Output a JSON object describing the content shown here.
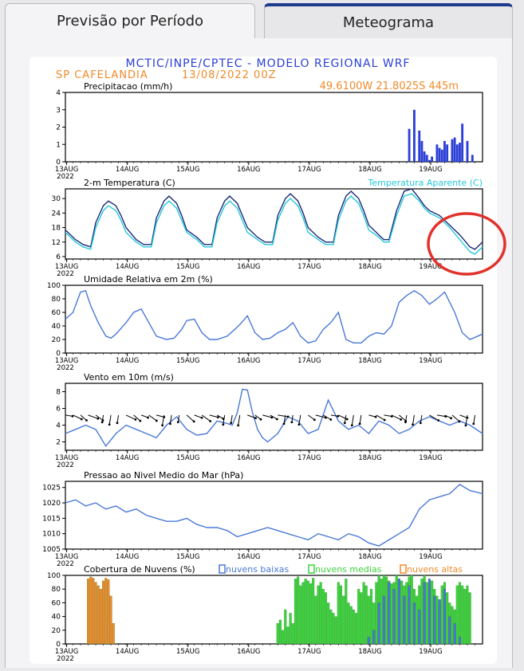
{
  "tabs": [
    {
      "label": "Previsão por Período",
      "active": false
    },
    {
      "label": "Meteograma",
      "active": true
    }
  ],
  "header": {
    "title": "MCTIC/INPE/CPTEC - MODELO REGIONAL WRF",
    "station": "SP CAFELANDIA",
    "run": "13/08/2022 00Z",
    "coords": "49.6100W 21.8025S 445m"
  },
  "colors": {
    "blue": "#2b3fd6",
    "navy": "#1a2a7a",
    "cyan": "#25c8d8",
    "orange": "#f08a2a",
    "green": "#3cd23c",
    "lightblue": "#4a78d8",
    "annotation": "#e2312a"
  },
  "x_axis": {
    "labels": [
      "13AUG",
      "14AUG",
      "15AUG",
      "16AUG",
      "17AUG",
      "18AUG",
      "19AUG"
    ],
    "year": "2022"
  },
  "chart_data": [
    {
      "type": "bar",
      "title": "Precipitacao (mm/h)",
      "ylim": [
        0,
        4
      ],
      "yticks": [
        0,
        1,
        2,
        3,
        4
      ],
      "xlabel": "",
      "ylabel": "",
      "x": [
        136,
        138,
        140,
        141,
        142,
        143,
        144,
        145,
        147,
        148,
        149,
        150,
        151,
        153,
        154,
        155,
        156,
        157,
        159,
        161
      ],
      "values": [
        1.9,
        3.0,
        1.8,
        1.2,
        0.6,
        0.4,
        0.1,
        0.3,
        1.0,
        0.8,
        0.7,
        1.2,
        1.0,
        1.3,
        1.4,
        1.0,
        1.1,
        2.2,
        1.2,
        0.4
      ]
    },
    {
      "type": "line",
      "title": "2-m Temperatura (C)",
      "ylim": [
        5,
        34
      ],
      "yticks": [
        6,
        12,
        18,
        24,
        30
      ],
      "xlabel": "",
      "ylabel": "",
      "x": [
        0,
        4,
        7,
        10,
        12,
        15,
        17,
        20,
        22,
        24,
        28,
        31,
        34,
        36,
        39,
        41,
        44,
        46,
        48,
        52,
        55,
        58,
        60,
        63,
        65,
        68,
        70,
        72,
        76,
        79,
        82,
        84,
        87,
        89,
        92,
        94,
        96,
        100,
        103,
        106,
        108,
        111,
        113,
        116,
        118,
        120,
        124,
        126,
        128,
        131,
        134,
        137,
        140,
        142,
        144,
        148,
        150,
        152,
        156,
        160,
        162,
        165
      ],
      "series": [
        {
          "name": "",
          "values": [
            17,
            13,
            11,
            10,
            20,
            27,
            29,
            27,
            23,
            18,
            13,
            11,
            11,
            22,
            29,
            31,
            28,
            23,
            17,
            14,
            11,
            11,
            22,
            29,
            31,
            28,
            23,
            18,
            14,
            12,
            12,
            23,
            30,
            32,
            29,
            24,
            18,
            14,
            12,
            12,
            23,
            31,
            33,
            30,
            25,
            19,
            15,
            13,
            13,
            25,
            33,
            34,
            30,
            27,
            25,
            23,
            21,
            19,
            15,
            10,
            9,
            12
          ]
        },
        {
          "name": "Temperatura Aparente (C)",
          "values": [
            16,
            12,
            10,
            9,
            18,
            25,
            27,
            25,
            21,
            16,
            12,
            10,
            10,
            20,
            27,
            29,
            26,
            21,
            16,
            13,
            10,
            10,
            20,
            27,
            29,
            26,
            21,
            16,
            13,
            11,
            11,
            21,
            28,
            30,
            27,
            22,
            16,
            13,
            11,
            11,
            21,
            29,
            31,
            28,
            23,
            17,
            14,
            12,
            12,
            23,
            31,
            32,
            29,
            26,
            24,
            22,
            20,
            18,
            13,
            8,
            7,
            10
          ]
        }
      ]
    },
    {
      "type": "line",
      "title": "Umidade Relativa em 2m (%)",
      "ylim": [
        0,
        100
      ],
      "yticks": [
        0,
        20,
        40,
        60,
        80,
        100
      ],
      "xlabel": "",
      "ylabel": "",
      "x": [
        0,
        3,
        6,
        8,
        10,
        13,
        16,
        18,
        20,
        24,
        27,
        30,
        33,
        36,
        40,
        43,
        46,
        48,
        51,
        54,
        57,
        60,
        64,
        67,
        69,
        72,
        75,
        78,
        81,
        84,
        87,
        90,
        93,
        96,
        99,
        102,
        105,
        108,
        111,
        114,
        117,
        120,
        123,
        126,
        129,
        132,
        135,
        138,
        141,
        144,
        147,
        150,
        154,
        157,
        160,
        165
      ],
      "series": [
        {
          "name": "",
          "values": [
            50,
            60,
            90,
            92,
            70,
            45,
            25,
            22,
            28,
            45,
            60,
            65,
            45,
            25,
            20,
            22,
            35,
            48,
            50,
            30,
            20,
            20,
            25,
            35,
            42,
            55,
            30,
            20,
            22,
            30,
            35,
            45,
            25,
            15,
            18,
            35,
            45,
            60,
            20,
            15,
            15,
            25,
            30,
            28,
            40,
            75,
            85,
            92,
            85,
            72,
            80,
            90,
            60,
            30,
            20,
            28
          ]
        }
      ]
    },
    {
      "type": "line",
      "title": "Vento em 10m (m/s)",
      "ylim": [
        1,
        9
      ],
      "yticks": [
        2,
        4,
        6,
        8
      ],
      "xlabel": "",
      "ylabel": "",
      "x": [
        0,
        4,
        8,
        12,
        16,
        20,
        24,
        28,
        32,
        36,
        40,
        44,
        48,
        52,
        56,
        60,
        64,
        66,
        68,
        70,
        72,
        74,
        76,
        78,
        80,
        84,
        88,
        92,
        96,
        100,
        104,
        108,
        112,
        116,
        120,
        124,
        128,
        132,
        136,
        140,
        144,
        148,
        152,
        156,
        160,
        165
      ],
      "series": [
        {
          "name": "",
          "values": [
            3,
            3.5,
            4,
            3.5,
            1.5,
            3,
            4,
            3.5,
            3,
            2.5,
            4,
            5,
            3.5,
            2.8,
            3,
            4.5,
            4.2,
            4,
            5.5,
            8.3,
            8.2,
            5.5,
            3.5,
            2.5,
            2,
            3,
            5,
            4.5,
            3,
            3.5,
            7,
            4.5,
            3.5,
            4,
            3,
            4.5,
            4,
            3,
            3.5,
            4.5,
            5,
            4.5,
            4,
            4.5,
            4,
            3
          ]
        }
      ]
    },
    {
      "type": "line",
      "title": "Pressao ao Nivel Medio do Mar (hPa)",
      "ylim": [
        1005,
        1027
      ],
      "yticks": [
        1005,
        1010,
        1015,
        1020,
        1025
      ],
      "xlabel": "",
      "ylabel": "",
      "x": [
        0,
        4,
        8,
        12,
        16,
        20,
        24,
        28,
        32,
        36,
        40,
        44,
        48,
        52,
        56,
        60,
        64,
        68,
        72,
        76,
        80,
        84,
        88,
        92,
        96,
        100,
        104,
        108,
        112,
        116,
        120,
        124,
        128,
        132,
        136,
        140,
        144,
        148,
        152,
        156,
        160,
        165
      ],
      "series": [
        {
          "name": "",
          "values": [
            1020,
            1021,
            1019,
            1020,
            1018,
            1019,
            1017,
            1018,
            1016,
            1015,
            1014,
            1014,
            1015,
            1013,
            1012,
            1012,
            1011,
            1009,
            1010,
            1011,
            1012,
            1011,
            1010,
            1009,
            1008,
            1010,
            1009,
            1008,
            1010,
            1009,
            1007,
            1006,
            1008,
            1010,
            1012,
            1018,
            1021,
            1022,
            1023,
            1026,
            1024,
            1023
          ]
        }
      ]
    },
    {
      "type": "bar",
      "title": "Cobertura de Nuvens (%)",
      "ylim": [
        0,
        100
      ],
      "yticks": [
        0,
        20,
        40,
        60,
        80,
        100
      ],
      "xlabel": "",
      "ylabel": "",
      "legend": [
        "nuvens baixas",
        "nuvens medias",
        "nuvens altas"
      ],
      "series": [
        {
          "name": "nuvens altas",
          "x": [
            9,
            10,
            11,
            12,
            13,
            14,
            15,
            16,
            17,
            18,
            19
          ],
          "values": [
            95,
            98,
            96,
            90,
            85,
            80,
            92,
            96,
            94,
            70,
            30
          ]
        },
        {
          "name": "nuvens medias",
          "x": [
            84,
            85,
            86,
            87,
            88,
            89,
            90,
            91,
            92,
            93,
            94,
            95,
            96,
            97,
            98,
            99,
            100,
            101,
            102,
            103,
            104,
            105,
            106,
            107,
            108,
            109,
            110,
            111,
            112,
            113,
            114,
            115,
            116,
            117,
            118,
            119,
            120,
            121,
            122,
            123,
            124,
            125,
            126,
            127,
            128,
            129,
            130,
            131,
            132,
            133,
            134,
            135,
            136,
            137,
            138,
            139,
            140,
            141,
            142,
            143,
            144,
            145,
            146,
            147,
            148,
            149,
            150,
            151,
            152,
            153,
            154,
            155,
            156,
            157,
            158,
            159,
            160
          ],
          "values": [
            30,
            35,
            20,
            50,
            25,
            45,
            30,
            95,
            98,
            85,
            90,
            95,
            92,
            88,
            96,
            70,
            85,
            90,
            80,
            75,
            60,
            50,
            45,
            40,
            90,
            85,
            70,
            95,
            60,
            55,
            50,
            45,
            80,
            75,
            90,
            85,
            70,
            80,
            60,
            90,
            100,
            95,
            100,
            98,
            92,
            88,
            90,
            100,
            95,
            92,
            85,
            90,
            98,
            100,
            80,
            70,
            85,
            95,
            100,
            90,
            88,
            92,
            80,
            70,
            60,
            85,
            90,
            75,
            60,
            55,
            50,
            85,
            90,
            85,
            80,
            85,
            75
          ]
        },
        {
          "name": "nuvens baixas",
          "x": [
            120,
            122,
            124,
            126,
            128,
            130,
            132,
            134,
            136,
            138,
            140,
            142,
            144,
            146,
            148,
            150,
            152,
            154,
            156
          ],
          "values": [
            10,
            20,
            60,
            70,
            90,
            80,
            95,
            70,
            85,
            60,
            50,
            90,
            95,
            70,
            65,
            80,
            40,
            30,
            10
          ]
        }
      ]
    }
  ]
}
